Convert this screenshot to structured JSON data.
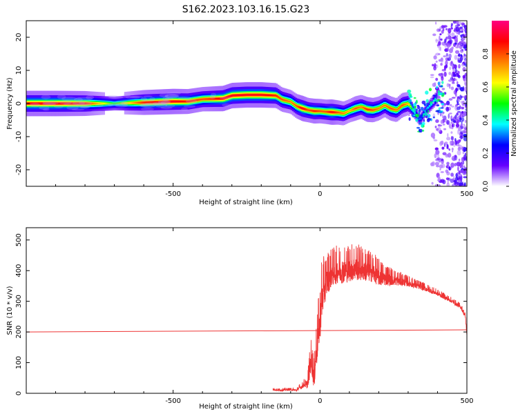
{
  "title": "S162.2023.103.16.15.G23",
  "chart_data": [
    {
      "type": "heatmap",
      "xlabel": "Height of straight line (km)",
      "ylabel": "Frequency (Hz)",
      "xlim": [
        -1000,
        500
      ],
      "ylim": [
        -25,
        25
      ],
      "x_ticks": [
        -500,
        0,
        500
      ],
      "y_ticks": [
        -20,
        -10,
        0,
        10,
        20
      ],
      "colorbar": {
        "label": "Normalized spectral amplitude",
        "range": [
          0.0,
          1.0
        ],
        "ticks": [
          0.0,
          0.2,
          0.4,
          0.6,
          0.8
        ],
        "colors": [
          "#ffffff",
          "#6600ff",
          "#0000ff",
          "#00ffff",
          "#00ff00",
          "#ffff00",
          "#ff8000",
          "#ff0000",
          "#ff0080"
        ]
      },
      "ridge": {
        "x": [
          -1000,
          -900,
          -800,
          -700,
          -600,
          -500,
          -450,
          -400,
          -330,
          -300,
          -250,
          -200,
          -150,
          -130,
          -100,
          -80,
          -60,
          -40,
          -20,
          0,
          20,
          40,
          60,
          80,
          100,
          120,
          140,
          160,
          180,
          200,
          220,
          240,
          260,
          280,
          300,
          320,
          340,
          360,
          380,
          400
        ],
        "y": [
          0,
          0,
          0,
          0,
          0.3,
          0.6,
          0.6,
          1.3,
          1.5,
          2.4,
          2.6,
          2.6,
          2.4,
          1.2,
          0.5,
          -0.8,
          -1.5,
          -2.0,
          -2.3,
          -2.3,
          -2.5,
          -2.6,
          -2.7,
          -3.0,
          -2.2,
          -1.5,
          -1.0,
          -1.8,
          -2.0,
          -1.5,
          -0.5,
          -1.5,
          -2.0,
          -0.5,
          0.0,
          -2.5,
          -5.0,
          -2.0,
          0.0,
          2.0
        ],
        "amplitude": [
          0.9,
          0.9,
          0.85,
          0.5,
          0.85,
          0.9,
          0.85,
          0.8,
          0.9,
          0.9,
          0.9,
          0.9,
          0.85,
          0.8,
          0.75,
          0.8,
          0.9,
          0.8,
          0.85,
          0.8,
          0.8,
          0.9,
          0.8,
          0.75,
          0.7,
          0.8,
          0.75,
          0.85,
          0.8,
          0.75,
          0.75,
          0.8,
          0.75,
          0.8,
          0.7,
          0.4,
          0.3,
          0.35,
          0.4,
          0.45
        ]
      },
      "noise_band": {
        "x_range": [
          380,
          500
        ],
        "amplitude": 0.15
      }
    },
    {
      "type": "line",
      "xlabel": "Height of straight line (km)",
      "ylabel": "SNR (10 * v/v)",
      "xlim": [
        -1000,
        500
      ],
      "ylim": [
        0,
        540
      ],
      "x_ticks": [
        -500,
        0,
        500
      ],
      "y_ticks": [
        0,
        100,
        200,
        300,
        400,
        500
      ],
      "color": "#ee3333",
      "series": [
        {
          "style": "straight",
          "x": [
            -1000,
            500
          ],
          "y": [
            200,
            207
          ]
        },
        {
          "style": "noisy",
          "x": [
            -160,
            -140,
            -100,
            -80,
            -70,
            -60,
            -55,
            -45,
            -40,
            -35,
            -30,
            -20,
            -15,
            -10,
            -5,
            0,
            5,
            15,
            25,
            40,
            60,
            80,
            100,
            120,
            140,
            160,
            180,
            200,
            250,
            300,
            350,
            400,
            450,
            480,
            495,
            500
          ],
          "y": [
            12,
            10,
            12,
            10,
            18,
            22,
            30,
            25,
            45,
            80,
            110,
            45,
            120,
            150,
            200,
            230,
            300,
            340,
            370,
            390,
            400,
            400,
            405,
            410,
            405,
            400,
            395,
            380,
            370,
            360,
            345,
            325,
            300,
            280,
            250,
            190
          ],
          "amplitude": [
            5,
            5,
            5,
            5,
            10,
            12,
            15,
            15,
            40,
            50,
            60,
            60,
            90,
            90,
            100,
            100,
            120,
            90,
            80,
            70,
            70,
            70,
            70,
            70,
            65,
            60,
            55,
            50,
            30,
            20,
            15,
            12,
            10,
            10,
            10,
            10
          ]
        }
      ]
    }
  ]
}
